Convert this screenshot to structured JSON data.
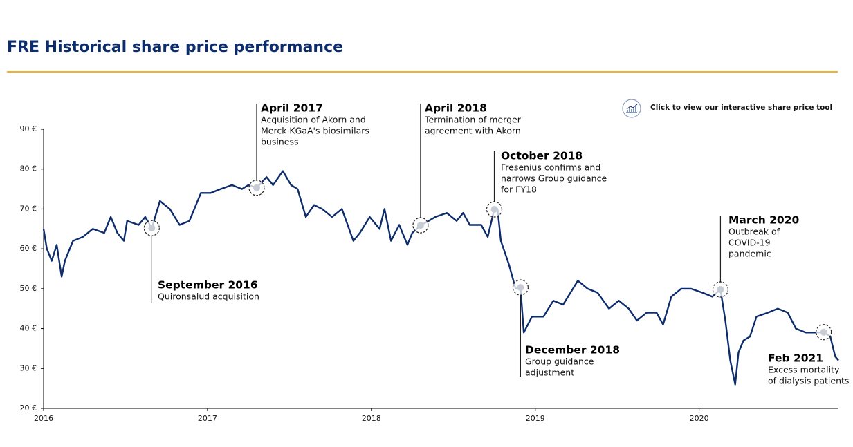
{
  "chart_data": {
    "type": "line",
    "title": "FRE Historical share price performance",
    "button": "Click to view our interactive share price tool",
    "x": [
      2016.0,
      2016.02,
      2016.05,
      2016.08,
      2016.11,
      2016.13,
      2016.18,
      2016.24,
      2016.3,
      2016.37,
      2016.41,
      2016.45,
      2016.49,
      2016.51,
      2016.58,
      2016.62,
      2016.66,
      2016.71,
      2016.77,
      2016.83,
      2016.89,
      2016.96,
      2017.02,
      2017.08,
      2017.15,
      2017.21,
      2017.25,
      2017.3,
      2017.36,
      2017.4,
      2017.46,
      2017.51,
      2017.55,
      2017.6,
      2017.65,
      2017.7,
      2017.76,
      2017.82,
      2017.89,
      2017.93,
      2017.99,
      2018.05,
      2018.08,
      2018.12,
      2018.17,
      2018.22,
      2018.25,
      2018.3,
      2018.35,
      2018.39,
      2018.46,
      2018.52,
      2018.56,
      2018.6,
      2018.67,
      2018.71,
      2018.75,
      2018.77,
      2018.79,
      2018.84,
      2018.88,
      2018.91,
      2018.93,
      2018.98,
      2019.05,
      2019.11,
      2019.17,
      2019.26,
      2019.32,
      2019.38,
      2019.45,
      2019.51,
      2019.57,
      2019.62,
      2019.68,
      2019.74,
      2019.78,
      2019.83,
      2019.89,
      2019.95,
      2020.02,
      2020.08,
      2020.13,
      2020.16,
      2020.19,
      2020.22,
      2020.24,
      2020.27,
      2020.31,
      2020.35,
      2020.42,
      2020.48,
      2020.54,
      2020.59,
      2020.65,
      2020.71,
      2020.76,
      2020.8,
      2020.83,
      2020.85
    ],
    "series": [
      {
        "color": "#0d2c6c",
        "values": [
          65,
          60,
          57,
          61,
          53,
          57,
          62,
          63,
          65,
          64,
          68,
          64,
          62,
          67,
          66,
          68,
          65.2,
          72,
          70,
          66,
          67,
          74,
          74,
          75,
          76,
          75,
          76,
          75.3,
          78,
          76,
          79.5,
          76,
          75,
          68,
          71,
          70,
          68,
          70,
          62,
          64,
          68,
          65,
          70,
          62,
          66,
          61,
          64,
          65.9,
          67,
          68,
          69,
          67,
          69,
          66,
          66,
          63,
          69.9,
          70,
          62,
          56,
          50,
          50.3,
          39,
          43,
          43,
          47,
          46,
          52,
          50,
          49,
          45,
          47,
          45,
          42,
          44,
          44,
          41,
          48,
          50,
          50,
          49,
          48,
          49.8,
          42,
          32,
          26,
          34,
          37,
          38,
          43,
          44,
          45,
          44,
          40,
          39,
          39,
          39.1,
          38,
          33,
          32
        ]
      }
    ],
    "xlim": [
      2016,
      2020.85
    ],
    "ylim": [
      20,
      90
    ],
    "xticks": [
      2016,
      2017,
      2018,
      2019,
      2020
    ],
    "yticks": [
      {
        "value": 20,
        "label": "20 €"
      },
      {
        "value": 30,
        "label": "30 €"
      },
      {
        "value": 40,
        "label": "40 €"
      },
      {
        "value": 50,
        "label": "50 €"
      },
      {
        "value": 60,
        "label": "60 €"
      },
      {
        "value": 70,
        "label": "70 €"
      },
      {
        "value": 80,
        "label": "80 €"
      },
      {
        "value": 90,
        "label": "90 €"
      }
    ],
    "annotations": [
      {
        "title": "September 2016",
        "lines": [
          "Quironsalud acquisition"
        ],
        "x": 2016.66,
        "y": 65.2
      },
      {
        "title": "April 2017",
        "lines": [
          "Acquisition of Akorn and",
          "Merck KGaA's biosimilars",
          "business"
        ],
        "x": 2017.3,
        "y": 75.3
      },
      {
        "title": "April 2018",
        "lines": [
          "Termination of merger",
          "agreement with Akorn"
        ],
        "x": 2018.3,
        "y": 65.9
      },
      {
        "title": "October 2018",
        "lines": [
          "Fresenius confirms and",
          "narrows Group guidance",
          "for FY18"
        ],
        "x": 2018.75,
        "y": 69.9
      },
      {
        "title": "December 2018",
        "lines": [
          "Group guidance",
          "adjustment"
        ],
        "x": 2018.91,
        "y": 50.3
      },
      {
        "title": "March 2020",
        "lines": [
          "Outbreak of",
          "COVID-19",
          "pandemic"
        ],
        "x": 2020.13,
        "y": 49.8
      },
      {
        "title": "Feb 2021",
        "lines": [
          "Excess mortality",
          "of dialysis patients"
        ],
        "x": 2020.76,
        "y": 39.1
      }
    ]
  }
}
